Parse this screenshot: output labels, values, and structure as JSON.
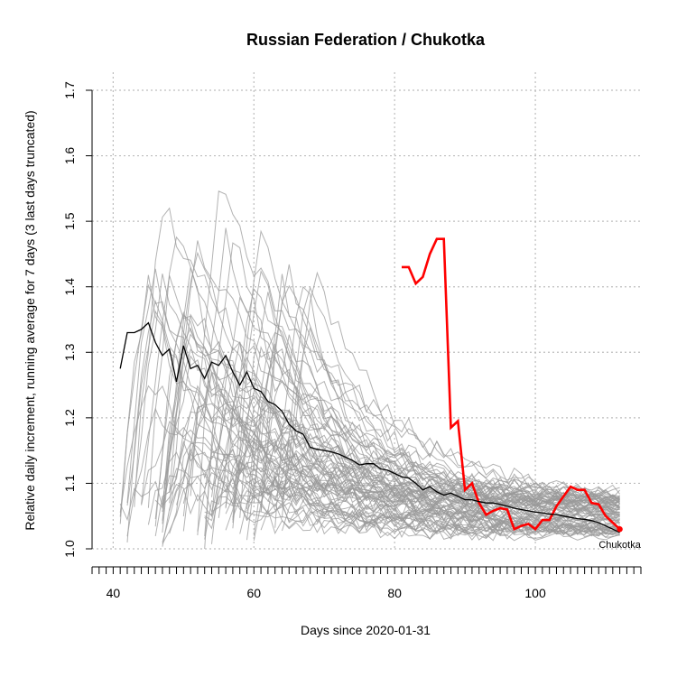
{
  "chart_data": {
    "type": "line",
    "title": "Russian Federation / Chukotka",
    "xlabel": "Days since 2020-01-31",
    "ylabel": "Relative daily increment, running average for 7 days (3 last days truncated)",
    "xlim": [
      37,
      115
    ],
    "ylim": [
      1.0,
      1.7
    ],
    "x_ticks": [
      40,
      60,
      80,
      100
    ],
    "y_ticks": [
      1.0,
      1.1,
      1.2,
      1.3,
      1.4,
      1.5,
      1.6,
      1.7
    ],
    "grid": true,
    "annotation": {
      "text": "Chukotka",
      "x": 112,
      "y": 1.03
    },
    "colors": {
      "highlight": "#ff0000",
      "national": "#000000",
      "regions": "#9a9a9a"
    },
    "series": [
      {
        "role": "highlight",
        "x": [
          81,
          82,
          83,
          84,
          85,
          86,
          87,
          88,
          89,
          90,
          91,
          92,
          93,
          94,
          95,
          96,
          97,
          98,
          99,
          100,
          101,
          102,
          103,
          104,
          105,
          106,
          107,
          108,
          109,
          110,
          111,
          112
        ],
        "y": [
          1.43,
          1.43,
          1.405,
          1.415,
          1.45,
          1.473,
          1.473,
          1.185,
          1.195,
          1.09,
          1.1,
          1.07,
          1.052,
          1.058,
          1.062,
          1.06,
          1.03,
          1.035,
          1.038,
          1.03,
          1.044,
          1.044,
          1.065,
          1.08,
          1.095,
          1.09,
          1.09,
          1.07,
          1.068,
          1.05,
          1.04,
          1.03
        ]
      },
      {
        "role": "national",
        "x": [
          41,
          42,
          43,
          44,
          45,
          46,
          47,
          48,
          49,
          50,
          51,
          52,
          53,
          54,
          55,
          56,
          57,
          58,
          59,
          60,
          61,
          62,
          63,
          64,
          65,
          66,
          67,
          68,
          69,
          70,
          71,
          72,
          73,
          74,
          75,
          76,
          77,
          78,
          79,
          80,
          81,
          82,
          83,
          84,
          85,
          86,
          87,
          88,
          89,
          90,
          91,
          92,
          93,
          94,
          95,
          96,
          97,
          98,
          99,
          100,
          101,
          102,
          103,
          104,
          105,
          106,
          107,
          108,
          109,
          110,
          111,
          112
        ],
        "y": [
          1.275,
          1.33,
          1.33,
          1.335,
          1.345,
          1.315,
          1.295,
          1.305,
          1.255,
          1.31,
          1.275,
          1.28,
          1.26,
          1.285,
          1.28,
          1.295,
          1.27,
          1.25,
          1.27,
          1.245,
          1.24,
          1.225,
          1.22,
          1.21,
          1.19,
          1.18,
          1.175,
          1.155,
          1.152,
          1.15,
          1.148,
          1.145,
          1.14,
          1.135,
          1.128,
          1.13,
          1.13,
          1.122,
          1.12,
          1.115,
          1.11,
          1.108,
          1.1,
          1.09,
          1.095,
          1.087,
          1.082,
          1.085,
          1.08,
          1.075,
          1.075,
          1.072,
          1.07,
          1.07,
          1.068,
          1.065,
          1.062,
          1.06,
          1.058,
          1.056,
          1.055,
          1.053,
          1.052,
          1.05,
          1.048,
          1.046,
          1.045,
          1.043,
          1.04,
          1.035,
          1.03,
          1.025
        ]
      }
    ]
  }
}
